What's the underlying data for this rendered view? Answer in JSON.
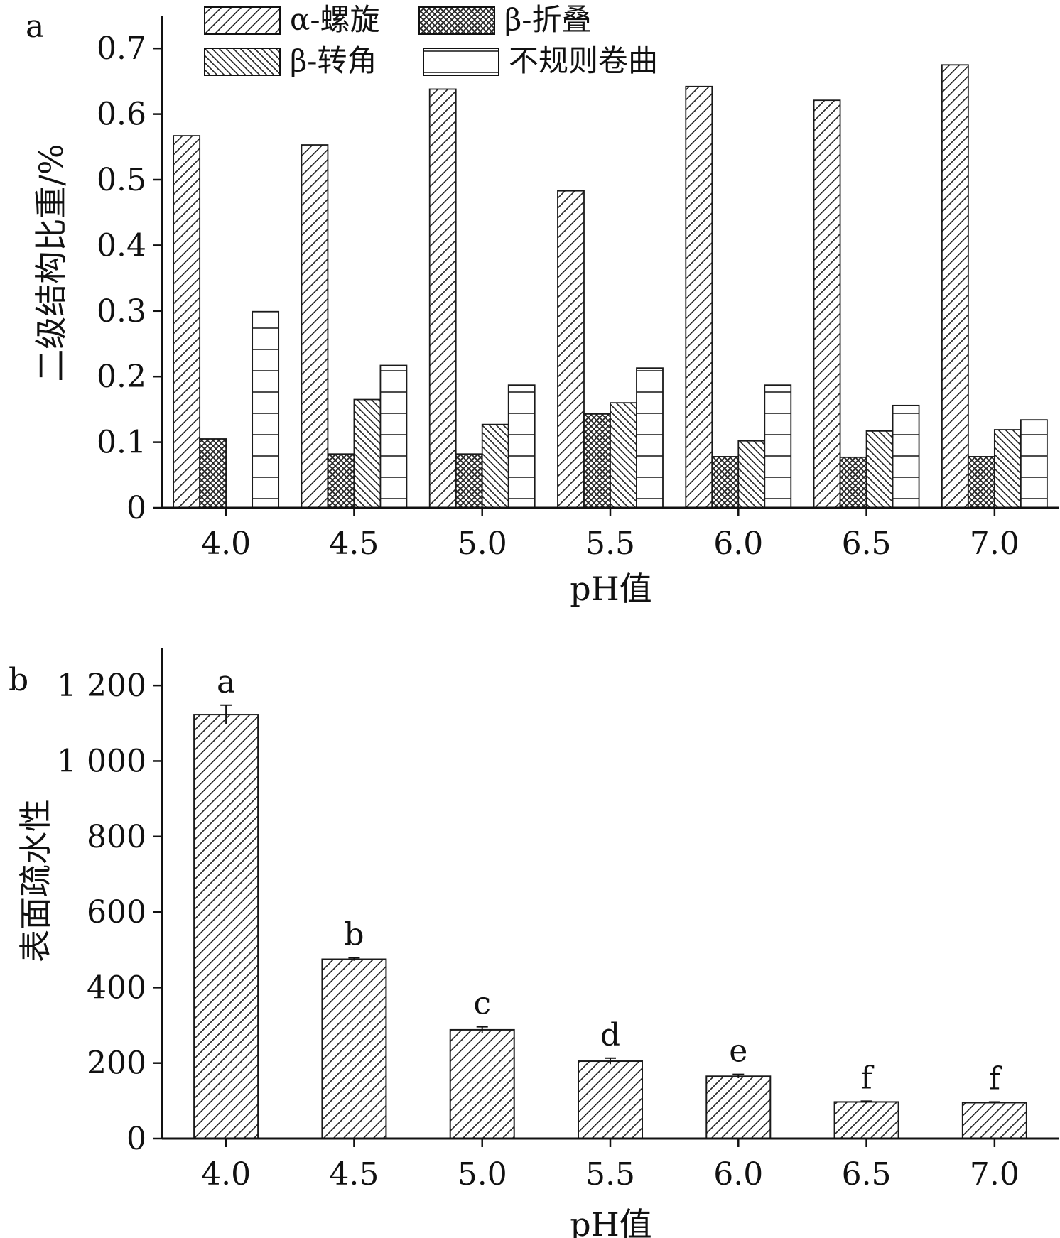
{
  "chart_data": [
    {
      "panel_label": "a",
      "type": "bar",
      "categories": [
        "4.0",
        "4.5",
        "5.0",
        "5.5",
        "6.0",
        "6.5",
        "7.0"
      ],
      "series": [
        {
          "name": "α-螺旋",
          "values": [
            0.567,
            0.553,
            0.638,
            0.483,
            0.642,
            0.621,
            0.675
          ]
        },
        {
          "name": "β-折叠",
          "values": [
            0.105,
            0.082,
            0.082,
            0.143,
            0.078,
            0.077,
            0.078
          ]
        },
        {
          "name": "β-转角",
          "values": [
            0.0,
            0.165,
            0.127,
            0.16,
            0.102,
            0.117,
            0.119
          ]
        },
        {
          "name": "不规则卷曲",
          "values": [
            0.299,
            0.217,
            0.187,
            0.213,
            0.187,
            0.156,
            0.134
          ]
        }
      ],
      "xlabel": "pH值",
      "ylabel": "二级结构比重/%",
      "ylim": [
        0,
        0.75
      ],
      "yticks": [
        "0",
        "0.1",
        "0.2",
        "0.3",
        "0.4",
        "0.5",
        "0.6",
        "0.7"
      ],
      "grid": false,
      "legend_position": "top",
      "bar_color": "#ffffff",
      "line_color": "#1a1a1a"
    },
    {
      "panel_label": "b",
      "type": "bar",
      "categories": [
        "4.0",
        "4.5",
        "5.0",
        "5.5",
        "6.0",
        "6.5",
        "7.0"
      ],
      "values": [
        1123,
        475,
        288,
        205,
        165,
        97,
        95
      ],
      "errors": [
        25,
        4,
        8,
        8,
        5,
        2,
        2
      ],
      "significance": [
        "a",
        "b",
        "c",
        "d",
        "e",
        "f",
        "f"
      ],
      "xlabel": "pH值",
      "ylabel": "表面疏水性",
      "ylim": [
        0,
        1300
      ],
      "yticks": [
        "0",
        "200",
        "400",
        "600",
        "800",
        "1 000",
        "1 200"
      ],
      "grid": false,
      "bar_color": "#ffffff",
      "line_color": "#1a1a1a"
    }
  ]
}
